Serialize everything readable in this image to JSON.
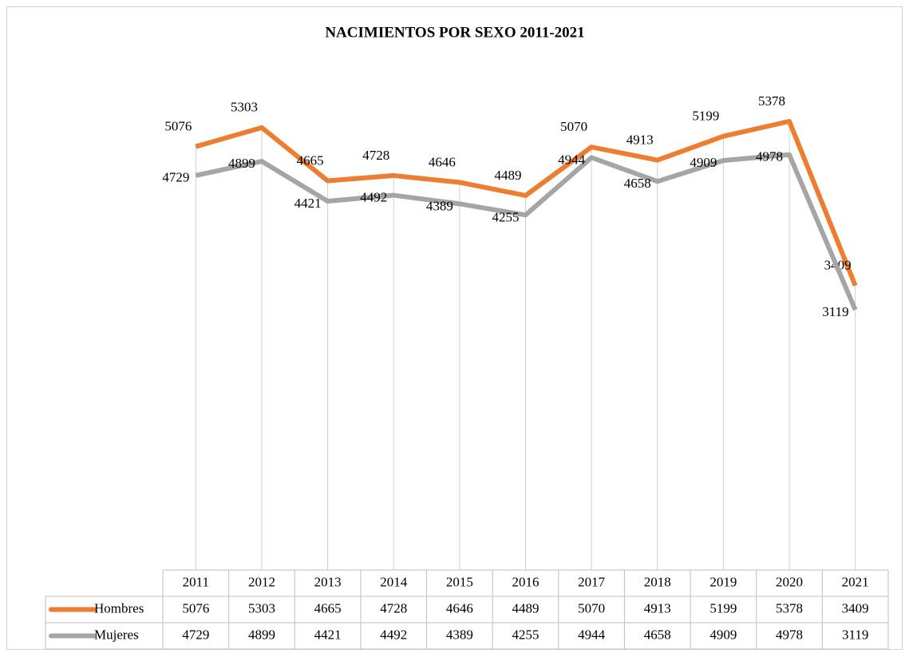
{
  "chart_data": {
    "type": "line",
    "title": "NACIMIENTOS POR SEXO 2011-2021",
    "categories": [
      "2011",
      "2012",
      "2013",
      "2014",
      "2015",
      "2016",
      "2017",
      "2018",
      "2019",
      "2020",
      "2021"
    ],
    "series": [
      {
        "name": "Hombres",
        "color": "#ed7d31",
        "values": [
          5076,
          5303,
          4665,
          4728,
          4646,
          4489,
          5070,
          4913,
          5199,
          5378,
          3409
        ]
      },
      {
        "name": "Mujeres",
        "color": "#a5a5a5",
        "values": [
          4729,
          4899,
          4421,
          4492,
          4389,
          4255,
          4944,
          4658,
          4909,
          4978,
          3119
        ]
      }
    ],
    "ylim": [
      0,
      6000
    ]
  }
}
